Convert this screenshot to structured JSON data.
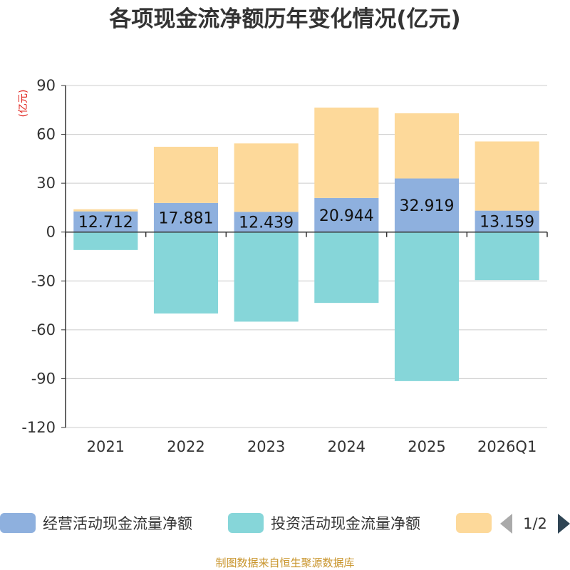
{
  "chart_data": {
    "type": "bar",
    "stacked": true,
    "title": "各项现金流净额历年变化情况(亿元)",
    "ylabel": "(亿元)",
    "xlabel": "",
    "ylim": [
      -120,
      90
    ],
    "yticks": [
      90,
      60,
      30,
      0,
      -30,
      -60,
      -90,
      -120
    ],
    "grid": true,
    "categories": [
      "2021",
      "2022",
      "2023",
      "2024",
      "2025",
      "2026Q1"
    ],
    "series": [
      {
        "name": "经营活动现金流量净额",
        "color": "#8eb0de",
        "values": [
          12.712,
          17.881,
          12.439,
          20.944,
          32.919,
          13.159
        ],
        "labels": [
          "12.712",
          "17.881",
          "12.439",
          "20.944",
          "32.919",
          "13.159"
        ]
      },
      {
        "name": "投资活动现金流量净额",
        "color": "#86d6d9",
        "values": [
          -11.0,
          -50.0,
          -55.0,
          -43.5,
          -91.5,
          -29.5
        ]
      },
      {
        "name": "",
        "color": "#fdd99a",
        "values": [
          1.3,
          34.5,
          42.0,
          55.5,
          40.0,
          42.5
        ]
      }
    ],
    "legend": {
      "position": "bottom",
      "page": "1/2"
    }
  },
  "source": "制图数据来自恒生聚源数据库"
}
